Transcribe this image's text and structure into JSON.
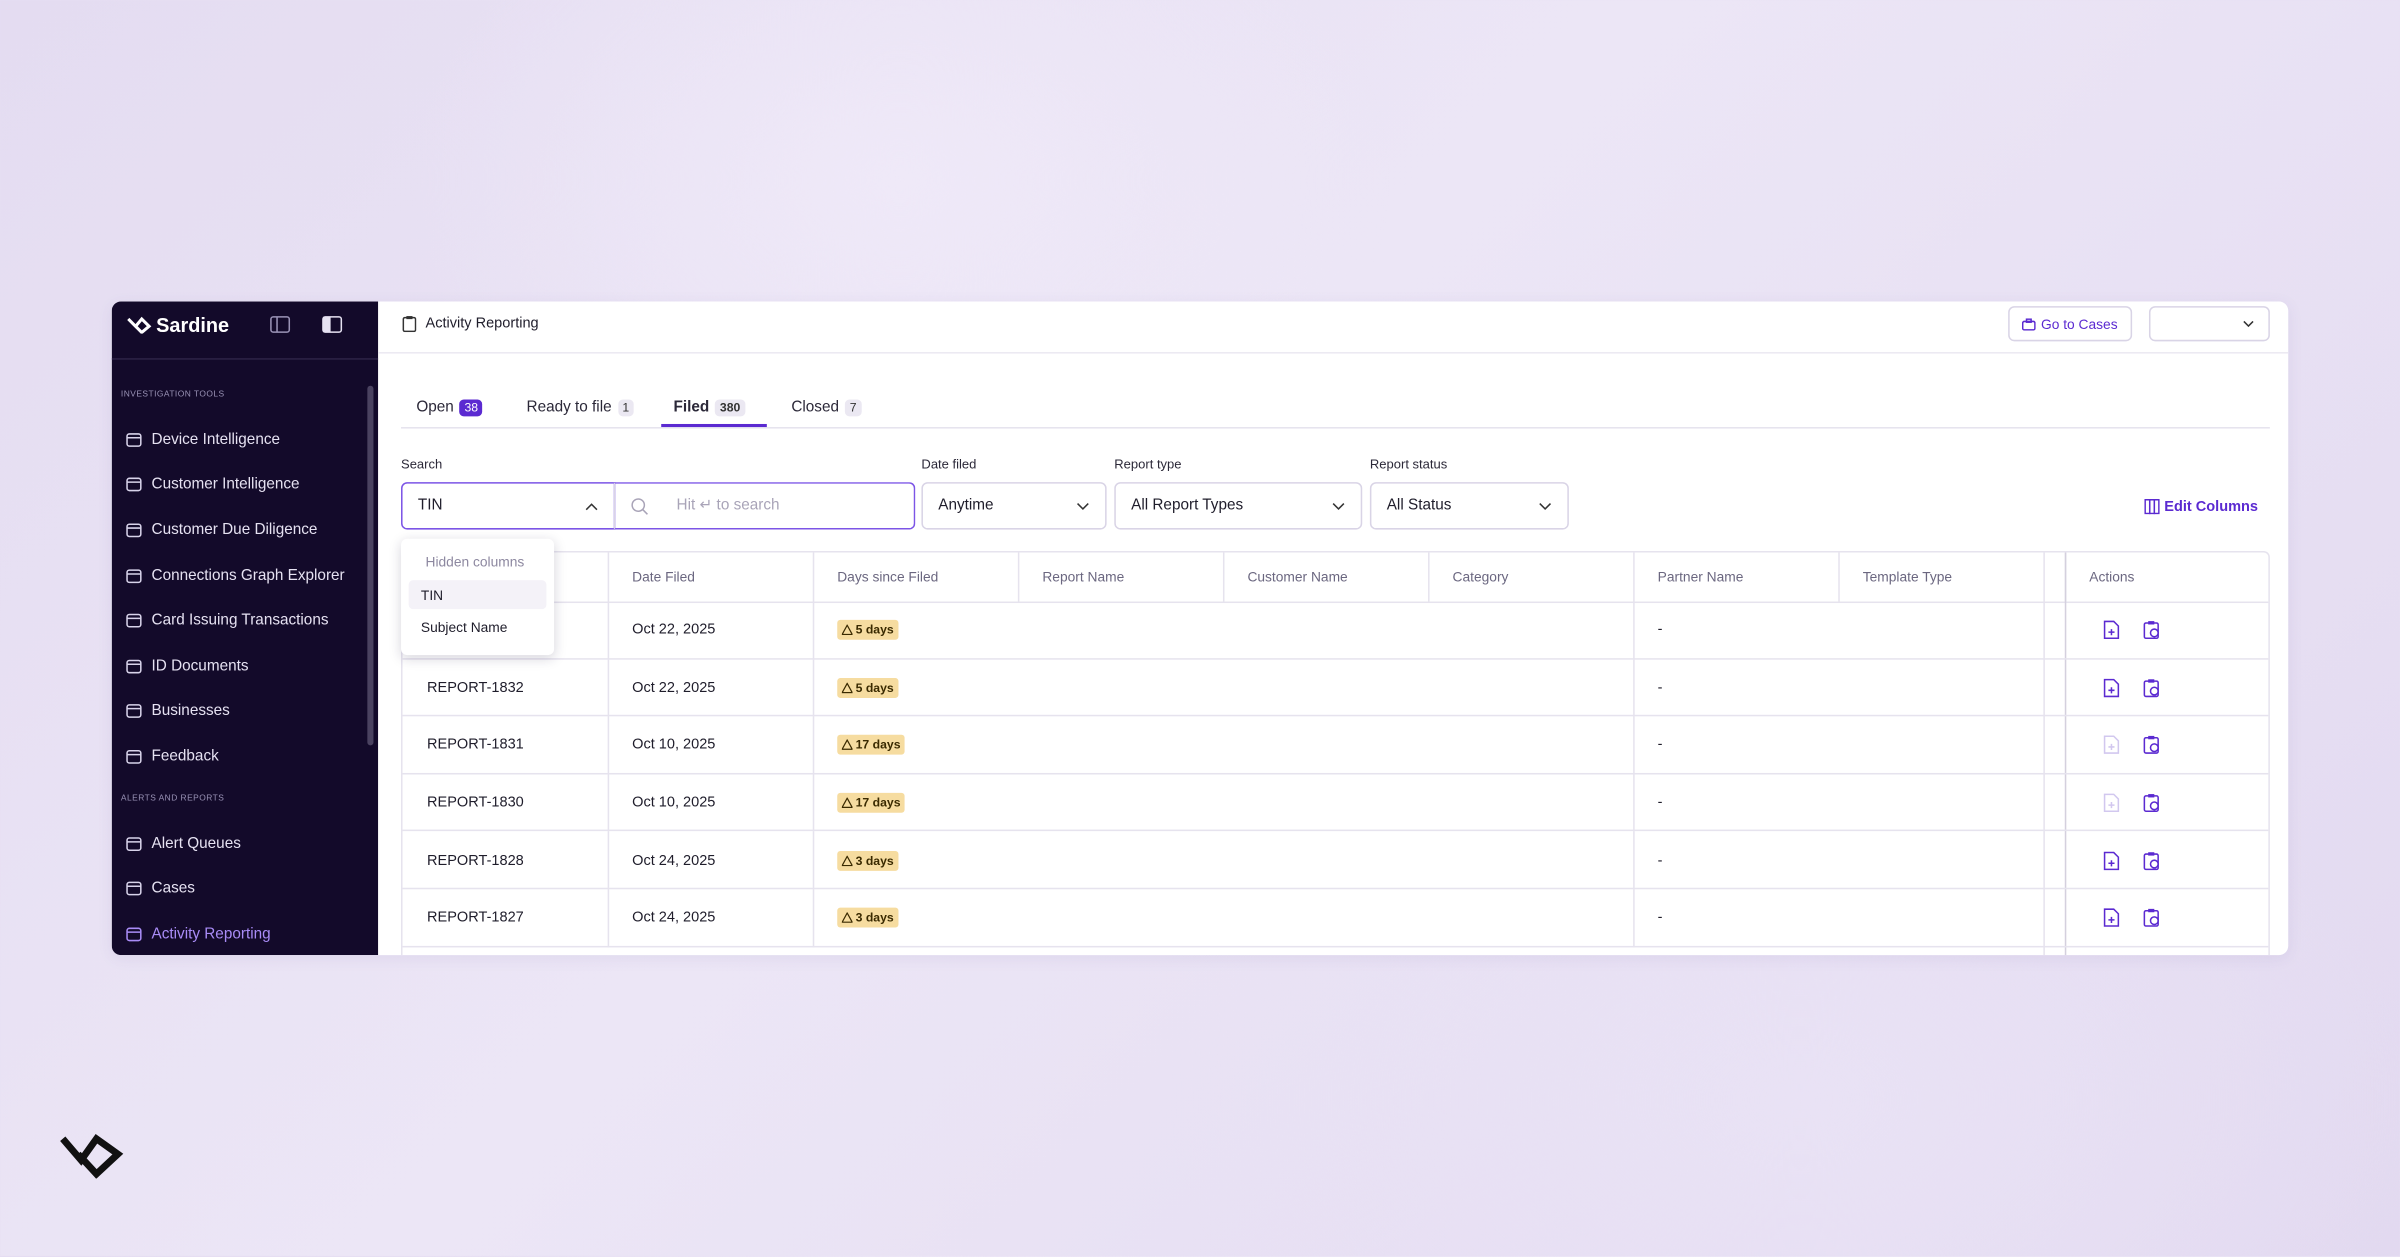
{
  "brand": "Sardine",
  "sidebar": {
    "sections": [
      {
        "label": "INVESTIGATION TOOLS",
        "items": [
          "Device Intelligence",
          "Customer Intelligence",
          "Customer Due Diligence",
          "Connections Graph Explorer",
          "Card Issuing Transactions",
          "ID Documents",
          "Businesses",
          "Feedback"
        ]
      },
      {
        "label": "ALERTS AND REPORTS",
        "items": [
          "Alert Queues",
          "Cases",
          "Activity Reporting"
        ]
      }
    ]
  },
  "header": {
    "title": "Activity Reporting",
    "button": "Go to Cases"
  },
  "tabs": [
    {
      "label": "Open",
      "count": 38
    },
    {
      "label": "Ready to file",
      "count": 1
    },
    {
      "label": "Filed",
      "count": 380,
      "active": true
    },
    {
      "label": "Closed",
      "count": 7
    }
  ],
  "filters": {
    "search_label": "Search",
    "search_value": "TIN",
    "search_placeholder": "Hit ↵ to search",
    "date_label": "Date filed",
    "date_value": "Anytime",
    "type_label": "Report type",
    "type_value": "All Report Types",
    "status_label": "Report status",
    "status_value": "All Status",
    "edit_columns": "Edit Columns"
  },
  "dropdown": {
    "heading": "Hidden columns",
    "options": [
      "TIN",
      "Subject Name"
    ]
  },
  "table": {
    "columns": [
      "Date Filed",
      "Days since Filed",
      "Report Name",
      "Customer Name",
      "Category",
      "Partner Name",
      "Template Type",
      "Actions"
    ],
    "rows": [
      {
        "date": "Oct 22, 2025",
        "days": "5 days",
        "partner": "-",
        "can_file": true
      },
      {
        "id": "REPORT-1832",
        "date": "Oct 22, 2025",
        "days": "5 days",
        "partner": "-",
        "can_file": true
      },
      {
        "id": "REPORT-1831",
        "date": "Oct 10, 2025",
        "days": "17 days",
        "partner": "-",
        "can_file": false
      },
      {
        "id": "REPORT-1830",
        "date": "Oct 10, 2025",
        "days": "17 days",
        "partner": "-",
        "can_file": false
      },
      {
        "id": "REPORT-1828",
        "date": "Oct 24, 2025",
        "days": "3 days",
        "partner": "-",
        "can_file": true
      },
      {
        "id": "REPORT-1827",
        "date": "Oct 24, 2025",
        "days": "3 days",
        "partner": "-",
        "can_file": true
      }
    ]
  }
}
